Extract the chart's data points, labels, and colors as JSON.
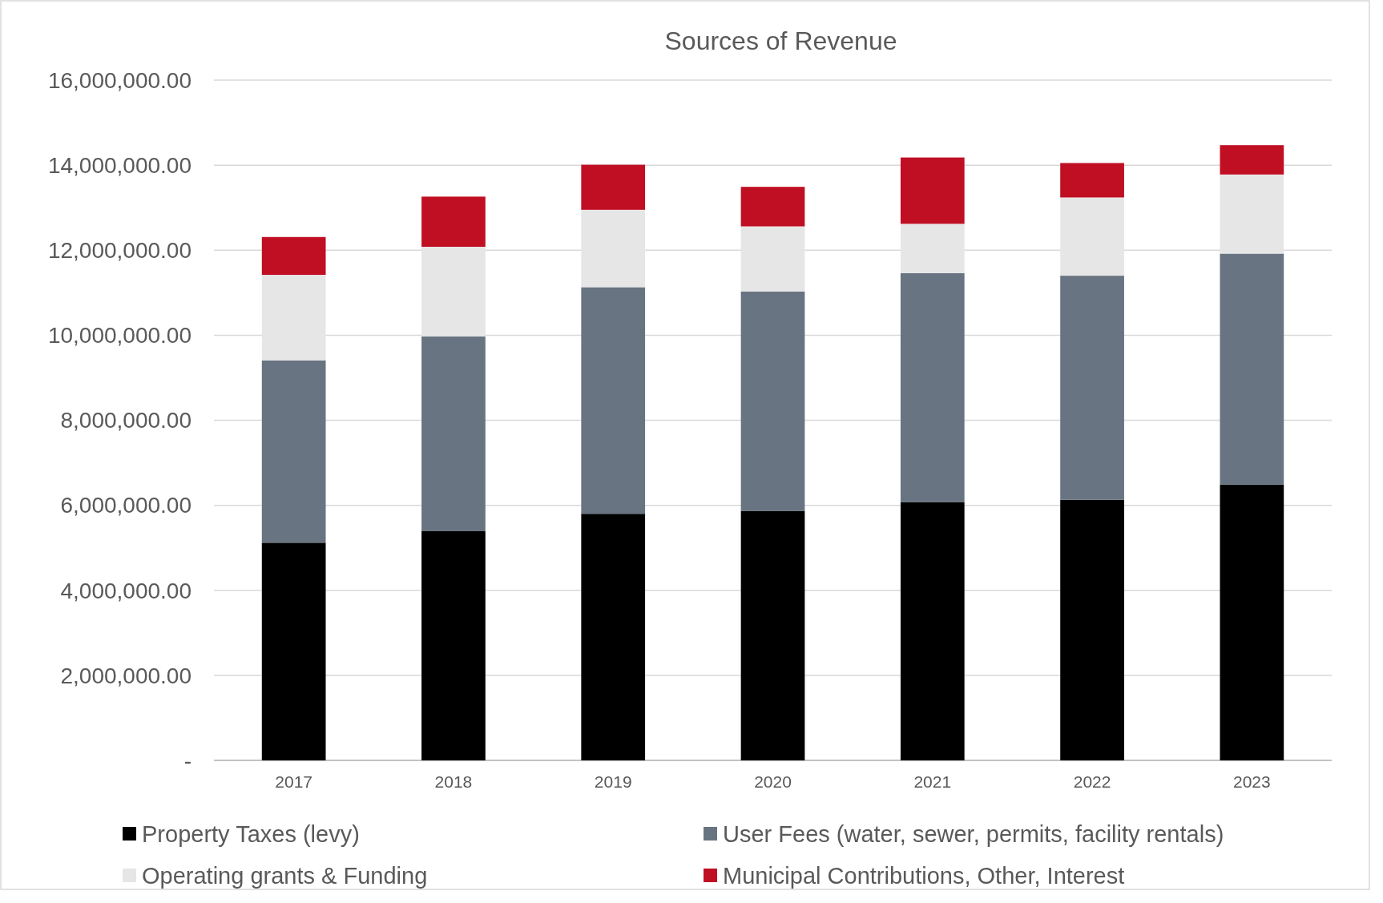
{
  "chart_data": {
    "type": "bar",
    "title": "Sources of Revenue",
    "stacked": true,
    "categories": [
      "2017",
      "2018",
      "2019",
      "2020",
      "2021",
      "2022",
      "2023"
    ],
    "series": [
      {
        "name": "Property Taxes (levy)",
        "color": "#000000",
        "values": [
          5120000,
          5390000,
          5800000,
          5870000,
          6070000,
          6130000,
          6490000
        ]
      },
      {
        "name": "User Fees (water, sewer, permits, facility rentals)",
        "color": "#687481",
        "values": [
          4290000,
          4580000,
          5330000,
          5160000,
          5390000,
          5270000,
          5430000
        ]
      },
      {
        "name": "Operating grants & Funding",
        "color": "#e7e6e6",
        "values": [
          2010000,
          2110000,
          1820000,
          1530000,
          1160000,
          1840000,
          1860000
        ]
      },
      {
        "name": "Municipal Contributions, Other, Interest",
        "color": "#c00f23",
        "values": [
          890000,
          1180000,
          1060000,
          930000,
          1560000,
          810000,
          690000
        ]
      }
    ],
    "ylim": [
      0,
      16000000
    ],
    "yticks": [
      {
        "value": 0,
        "label": "-"
      },
      {
        "value": 2000000,
        "label": "2,000,000.00"
      },
      {
        "value": 4000000,
        "label": "4,000,000.00"
      },
      {
        "value": 6000000,
        "label": "6,000,000.00"
      },
      {
        "value": 8000000,
        "label": "8,000,000.00"
      },
      {
        "value": 10000000,
        "label": "10,000,000.00"
      },
      {
        "value": 12000000,
        "label": "12,000,000.00"
      },
      {
        "value": 14000000,
        "label": "14,000,000.00"
      },
      {
        "value": 16000000,
        "label": "16,000,000.00"
      }
    ],
    "grid": "y",
    "legend": "bottom"
  }
}
